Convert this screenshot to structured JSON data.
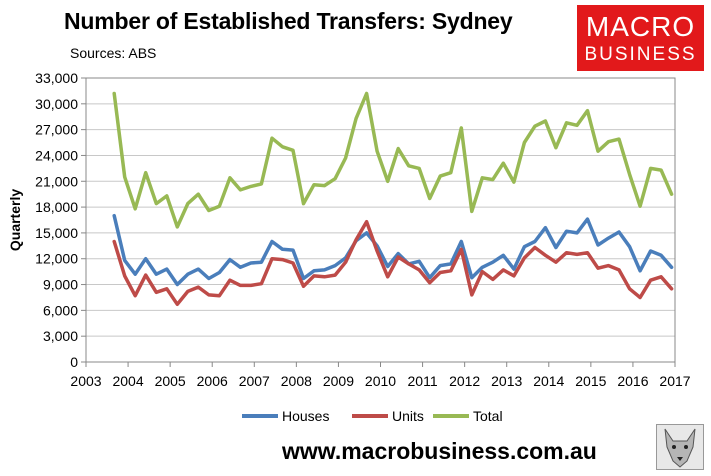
{
  "header": {
    "title": "Number of Established Transfers: Sydney",
    "sources": "Sources: ABS"
  },
  "logo": {
    "line1": "MACRO",
    "line2": "BUSINESS"
  },
  "footer": {
    "website": "www.macrobusiness.com.au"
  },
  "colors": {
    "houses": "#4a7ebb",
    "units": "#be4b48",
    "total": "#98b954",
    "logo_bg": "#e2191b"
  },
  "chart_data": {
    "type": "line",
    "ylabel": "Quarterly",
    "ylim": [
      0,
      33000
    ],
    "yticks": [
      0,
      3000,
      6000,
      9000,
      12000,
      15000,
      18000,
      21000,
      24000,
      27000,
      30000,
      33000
    ],
    "ytick_labels": [
      "0",
      "3,000",
      "6,000",
      "9,000",
      "12,000",
      "15,000",
      "18,000",
      "21,000",
      "24,000",
      "27,000",
      "30,000",
      "33,000"
    ],
    "xlim": [
      2003,
      2017
    ],
    "xticks": [
      "2003",
      "2004",
      "2005",
      "2006",
      "2007",
      "2008",
      "2009",
      "2010",
      "2011",
      "2012",
      "2013",
      "2014",
      "2015",
      "2016",
      "2017"
    ],
    "legend_position": "bottom",
    "grid": true,
    "x": [
      2003.67,
      2003.92,
      2004.17,
      2004.42,
      2004.67,
      2004.92,
      2005.17,
      2005.42,
      2005.67,
      2005.92,
      2006.17,
      2006.42,
      2006.67,
      2006.92,
      2007.17,
      2007.42,
      2007.67,
      2007.92,
      2008.17,
      2008.42,
      2008.67,
      2008.92,
      2009.17,
      2009.42,
      2009.67,
      2009.92,
      2010.17,
      2010.42,
      2010.67,
      2010.92,
      2011.17,
      2011.42,
      2011.67,
      2011.92,
      2012.17,
      2012.42,
      2012.67,
      2012.92,
      2013.17,
      2013.42,
      2013.67,
      2013.92,
      2014.17,
      2014.42,
      2014.67,
      2014.92,
      2015.17,
      2015.42,
      2015.67,
      2015.92,
      2016.17,
      2016.42,
      2016.67,
      2016.92
    ],
    "series": [
      {
        "name": "Houses",
        "color": "#4a7ebb",
        "values": [
          17000,
          11800,
          10200,
          12000,
          10200,
          10800,
          9000,
          10200,
          10800,
          9700,
          10400,
          11900,
          11000,
          11500,
          11600,
          14000,
          13100,
          13000,
          9700,
          10600,
          10700,
          11200,
          12100,
          14100,
          15000,
          13500,
          11100,
          12600,
          11400,
          11700,
          9800,
          11200,
          11400,
          14000,
          9800,
          11000,
          11600,
          12400,
          10800,
          13400,
          14000,
          15600,
          13300,
          15200,
          15000,
          16600,
          13600,
          14400,
          15100,
          13400,
          10600,
          12900,
          12400,
          11000
        ]
      },
      {
        "name": "Units",
        "color": "#be4b48",
        "values": [
          14000,
          10000,
          7700,
          10100,
          8100,
          8500,
          6700,
          8200,
          8700,
          7800,
          7700,
          9500,
          8900,
          8900,
          9100,
          12000,
          11900,
          11500,
          8800,
          10000,
          9900,
          10100,
          11600,
          14200,
          16300,
          12900,
          9900,
          12200,
          11400,
          10700,
          9200,
          10400,
          10600,
          13100,
          7800,
          10500,
          9600,
          10700,
          10000,
          12100,
          13300,
          12400,
          11600,
          12700,
          12500,
          12700,
          10900,
          11200,
          10700,
          8500,
          7500,
          9500,
          9900,
          8500
        ]
      },
      {
        "name": "Total",
        "color": "#98b954",
        "values": [
          31200,
          21500,
          17800,
          22000,
          18400,
          19300,
          15700,
          18400,
          19500,
          17600,
          18100,
          21400,
          20000,
          20400,
          20700,
          26000,
          25000,
          24600,
          18400,
          20600,
          20500,
          21300,
          23700,
          28300,
          31200,
          24500,
          21000,
          24800,
          22800,
          22500,
          19000,
          21600,
          22000,
          27200,
          17500,
          21400,
          21200,
          23100,
          20900,
          25500,
          27400,
          28000,
          24900,
          27800,
          27500,
          29200,
          24500,
          25600,
          25900,
          21800,
          18100,
          22500,
          22300,
          19500
        ]
      }
    ]
  }
}
